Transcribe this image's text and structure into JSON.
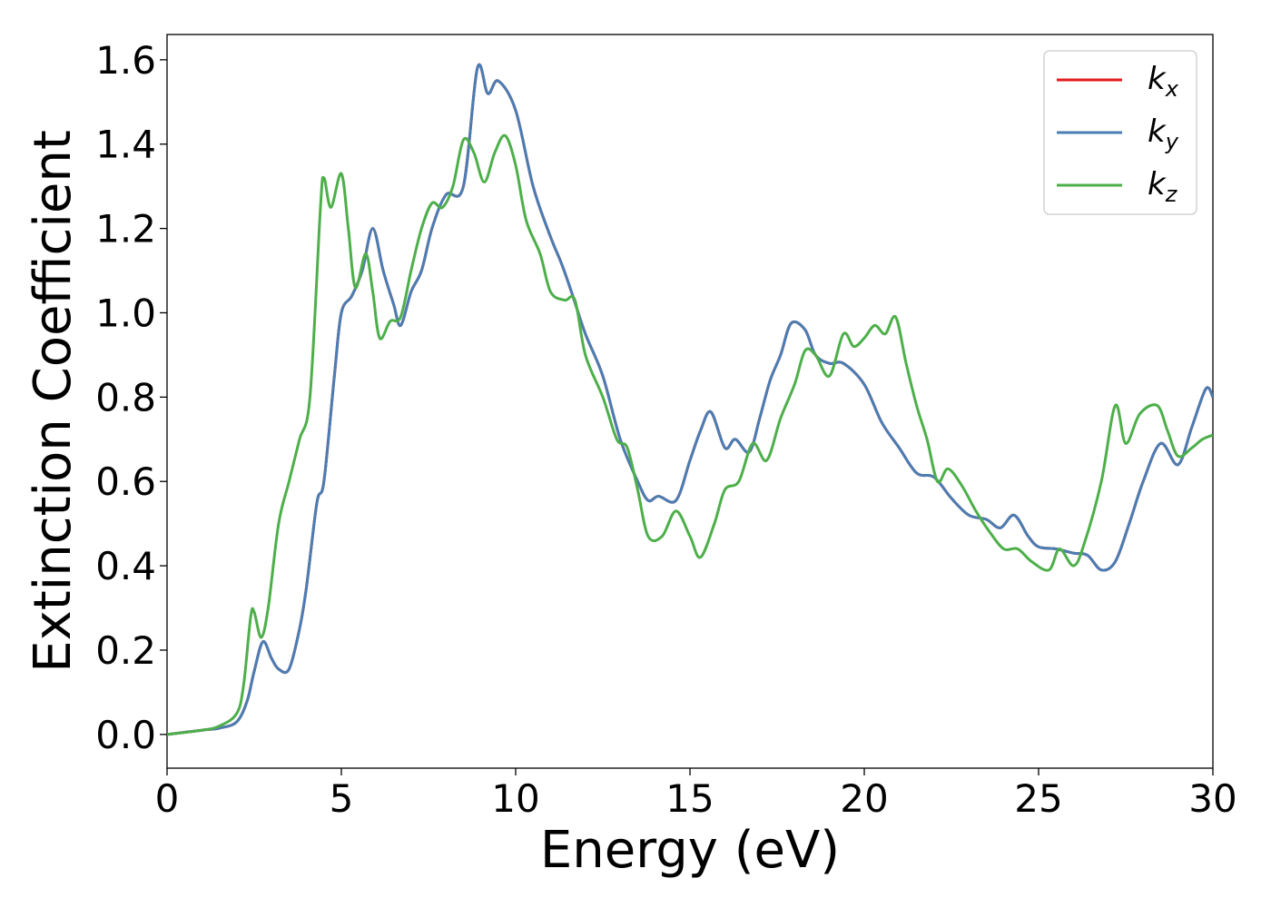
{
  "chart_data": {
    "type": "line",
    "title": "",
    "xlabel": "Energy (eV)",
    "ylabel": "Extinction Coefficient",
    "xlim": [
      0,
      30
    ],
    "ylim": [
      -0.08,
      1.66
    ],
    "xticks": [
      0,
      5,
      10,
      15,
      20,
      25,
      30
    ],
    "xtick_labels": [
      "0",
      "5",
      "10",
      "15",
      "20",
      "25",
      "30"
    ],
    "yticks": [
      0.0,
      0.2,
      0.4,
      0.6,
      0.8,
      1.0,
      1.2,
      1.4,
      1.6
    ],
    "ytick_labels": [
      "0.0",
      "0.2",
      "0.4",
      "0.6",
      "0.8",
      "1.0",
      "1.2",
      "1.4",
      "1.6"
    ],
    "grid": false,
    "legend_position": "top-right",
    "series": [
      {
        "name": "k_x",
        "label_main": "k",
        "label_sub": "x",
        "color": "#e41a1c",
        "points": [
          [
            0,
            0
          ],
          [
            1,
            0.01
          ],
          [
            1.5,
            0.015
          ],
          [
            2.0,
            0.03
          ],
          [
            2.3,
            0.08
          ],
          [
            2.5,
            0.15
          ],
          [
            2.75,
            0.22
          ],
          [
            3.0,
            0.18
          ],
          [
            3.2,
            0.155
          ],
          [
            3.5,
            0.155
          ],
          [
            3.8,
            0.25
          ],
          [
            4.0,
            0.35
          ],
          [
            4.3,
            0.55
          ],
          [
            4.5,
            0.6
          ],
          [
            4.8,
            0.85
          ],
          [
            5.0,
            1.0
          ],
          [
            5.3,
            1.04
          ],
          [
            5.6,
            1.1
          ],
          [
            5.9,
            1.2
          ],
          [
            6.2,
            1.1
          ],
          [
            6.5,
            1.02
          ],
          [
            6.7,
            0.97
          ],
          [
            7.0,
            1.05
          ],
          [
            7.3,
            1.1
          ],
          [
            7.6,
            1.2
          ],
          [
            8.0,
            1.28
          ],
          [
            8.5,
            1.3
          ],
          [
            8.9,
            1.58
          ],
          [
            9.2,
            1.52
          ],
          [
            9.5,
            1.55
          ],
          [
            10.0,
            1.48
          ],
          [
            10.5,
            1.3
          ],
          [
            11.0,
            1.18
          ],
          [
            11.3,
            1.12
          ],
          [
            11.6,
            1.05
          ],
          [
            12.0,
            0.95
          ],
          [
            12.5,
            0.85
          ],
          [
            13.0,
            0.7
          ],
          [
            13.5,
            0.6
          ],
          [
            13.8,
            0.555
          ],
          [
            14.1,
            0.565
          ],
          [
            14.6,
            0.555
          ],
          [
            15.0,
            0.65
          ],
          [
            15.3,
            0.72
          ],
          [
            15.6,
            0.765
          ],
          [
            16.0,
            0.68
          ],
          [
            16.3,
            0.7
          ],
          [
            16.7,
            0.67
          ],
          [
            17.0,
            0.75
          ],
          [
            17.3,
            0.84
          ],
          [
            17.6,
            0.9
          ],
          [
            17.9,
            0.975
          ],
          [
            18.3,
            0.96
          ],
          [
            18.6,
            0.9
          ],
          [
            19.0,
            0.88
          ],
          [
            19.4,
            0.88
          ],
          [
            20.0,
            0.83
          ],
          [
            20.5,
            0.74
          ],
          [
            21.0,
            0.68
          ],
          [
            21.5,
            0.62
          ],
          [
            22.0,
            0.61
          ],
          [
            22.5,
            0.56
          ],
          [
            23.0,
            0.52
          ],
          [
            23.5,
            0.51
          ],
          [
            23.9,
            0.49
          ],
          [
            24.3,
            0.52
          ],
          [
            24.7,
            0.47
          ],
          [
            25.0,
            0.445
          ],
          [
            25.5,
            0.44
          ],
          [
            26.0,
            0.43
          ],
          [
            26.4,
            0.425
          ],
          [
            26.8,
            0.39
          ],
          [
            27.2,
            0.41
          ],
          [
            27.6,
            0.5
          ],
          [
            28.0,
            0.6
          ],
          [
            28.5,
            0.69
          ],
          [
            29.0,
            0.64
          ],
          [
            29.4,
            0.73
          ],
          [
            29.8,
            0.82
          ],
          [
            30.0,
            0.8
          ]
        ]
      },
      {
        "name": "k_y",
        "label_main": "k",
        "label_sub": "y",
        "color": "#4a7db3",
        "points": [
          [
            0,
            0
          ],
          [
            1,
            0.01
          ],
          [
            1.5,
            0.015
          ],
          [
            2.0,
            0.03
          ],
          [
            2.3,
            0.08
          ],
          [
            2.5,
            0.15
          ],
          [
            2.75,
            0.22
          ],
          [
            3.0,
            0.18
          ],
          [
            3.2,
            0.155
          ],
          [
            3.5,
            0.155
          ],
          [
            3.8,
            0.25
          ],
          [
            4.0,
            0.35
          ],
          [
            4.3,
            0.55
          ],
          [
            4.5,
            0.6
          ],
          [
            4.8,
            0.85
          ],
          [
            5.0,
            1.0
          ],
          [
            5.3,
            1.04
          ],
          [
            5.6,
            1.1
          ],
          [
            5.9,
            1.2
          ],
          [
            6.2,
            1.1
          ],
          [
            6.5,
            1.02
          ],
          [
            6.7,
            0.97
          ],
          [
            7.0,
            1.05
          ],
          [
            7.3,
            1.1
          ],
          [
            7.6,
            1.2
          ],
          [
            8.0,
            1.28
          ],
          [
            8.5,
            1.3
          ],
          [
            8.9,
            1.58
          ],
          [
            9.2,
            1.52
          ],
          [
            9.5,
            1.55
          ],
          [
            10.0,
            1.48
          ],
          [
            10.5,
            1.3
          ],
          [
            11.0,
            1.18
          ],
          [
            11.3,
            1.12
          ],
          [
            11.6,
            1.05
          ],
          [
            12.0,
            0.95
          ],
          [
            12.5,
            0.85
          ],
          [
            13.0,
            0.7
          ],
          [
            13.5,
            0.6
          ],
          [
            13.8,
            0.555
          ],
          [
            14.1,
            0.565
          ],
          [
            14.6,
            0.555
          ],
          [
            15.0,
            0.65
          ],
          [
            15.3,
            0.72
          ],
          [
            15.6,
            0.765
          ],
          [
            16.0,
            0.68
          ],
          [
            16.3,
            0.7
          ],
          [
            16.7,
            0.67
          ],
          [
            17.0,
            0.75
          ],
          [
            17.3,
            0.84
          ],
          [
            17.6,
            0.9
          ],
          [
            17.9,
            0.975
          ],
          [
            18.3,
            0.96
          ],
          [
            18.6,
            0.9
          ],
          [
            19.0,
            0.88
          ],
          [
            19.4,
            0.88
          ],
          [
            20.0,
            0.83
          ],
          [
            20.5,
            0.74
          ],
          [
            21.0,
            0.68
          ],
          [
            21.5,
            0.62
          ],
          [
            22.0,
            0.61
          ],
          [
            22.5,
            0.56
          ],
          [
            23.0,
            0.52
          ],
          [
            23.5,
            0.51
          ],
          [
            23.9,
            0.49
          ],
          [
            24.3,
            0.52
          ],
          [
            24.7,
            0.47
          ],
          [
            25.0,
            0.445
          ],
          [
            25.5,
            0.44
          ],
          [
            26.0,
            0.43
          ],
          [
            26.4,
            0.425
          ],
          [
            26.8,
            0.39
          ],
          [
            27.2,
            0.41
          ],
          [
            27.6,
            0.5
          ],
          [
            28.0,
            0.6
          ],
          [
            28.5,
            0.69
          ],
          [
            29.0,
            0.64
          ],
          [
            29.4,
            0.73
          ],
          [
            29.8,
            0.82
          ],
          [
            30.0,
            0.8
          ]
        ]
      },
      {
        "name": "k_z",
        "label_main": "k",
        "label_sub": "z",
        "color": "#4daf4a",
        "points": [
          [
            0,
            0
          ],
          [
            1,
            0.01
          ],
          [
            1.5,
            0.02
          ],
          [
            2.0,
            0.05
          ],
          [
            2.2,
            0.12
          ],
          [
            2.4,
            0.28
          ],
          [
            2.5,
            0.29
          ],
          [
            2.7,
            0.23
          ],
          [
            2.9,
            0.3
          ],
          [
            3.2,
            0.5
          ],
          [
            3.5,
            0.6
          ],
          [
            3.8,
            0.7
          ],
          [
            4.1,
            0.8
          ],
          [
            4.4,
            1.25
          ],
          [
            4.5,
            1.32
          ],
          [
            4.7,
            1.25
          ],
          [
            5.0,
            1.33
          ],
          [
            5.2,
            1.2
          ],
          [
            5.4,
            1.06
          ],
          [
            5.7,
            1.14
          ],
          [
            5.9,
            1.05
          ],
          [
            6.1,
            0.94
          ],
          [
            6.4,
            0.98
          ],
          [
            6.7,
            0.99
          ],
          [
            7.0,
            1.1
          ],
          [
            7.3,
            1.2
          ],
          [
            7.6,
            1.26
          ],
          [
            7.9,
            1.25
          ],
          [
            8.2,
            1.3
          ],
          [
            8.5,
            1.41
          ],
          [
            8.8,
            1.38
          ],
          [
            9.1,
            1.31
          ],
          [
            9.4,
            1.38
          ],
          [
            9.7,
            1.42
          ],
          [
            10.0,
            1.35
          ],
          [
            10.3,
            1.22
          ],
          [
            10.7,
            1.14
          ],
          [
            11.0,
            1.05
          ],
          [
            11.4,
            1.03
          ],
          [
            11.7,
            1.03
          ],
          [
            12.0,
            0.9
          ],
          [
            12.5,
            0.8
          ],
          [
            12.9,
            0.7
          ],
          [
            13.2,
            0.68
          ],
          [
            13.5,
            0.58
          ],
          [
            13.8,
            0.47
          ],
          [
            14.2,
            0.47
          ],
          [
            14.6,
            0.53
          ],
          [
            15.0,
            0.47
          ],
          [
            15.3,
            0.42
          ],
          [
            15.7,
            0.5
          ],
          [
            16.0,
            0.58
          ],
          [
            16.4,
            0.6
          ],
          [
            16.8,
            0.69
          ],
          [
            17.2,
            0.65
          ],
          [
            17.6,
            0.75
          ],
          [
            18.0,
            0.83
          ],
          [
            18.3,
            0.91
          ],
          [
            18.6,
            0.9
          ],
          [
            19.0,
            0.85
          ],
          [
            19.4,
            0.95
          ],
          [
            19.7,
            0.92
          ],
          [
            20.0,
            0.94
          ],
          [
            20.3,
            0.97
          ],
          [
            20.6,
            0.95
          ],
          [
            20.9,
            0.99
          ],
          [
            21.2,
            0.88
          ],
          [
            21.5,
            0.78
          ],
          [
            21.8,
            0.7
          ],
          [
            22.1,
            0.6
          ],
          [
            22.4,
            0.63
          ],
          [
            22.8,
            0.59
          ],
          [
            23.2,
            0.53
          ],
          [
            23.6,
            0.48
          ],
          [
            24.0,
            0.44
          ],
          [
            24.4,
            0.44
          ],
          [
            24.8,
            0.41
          ],
          [
            25.3,
            0.39
          ],
          [
            25.6,
            0.44
          ],
          [
            26.0,
            0.4
          ],
          [
            26.3,
            0.45
          ],
          [
            26.8,
            0.6
          ],
          [
            27.2,
            0.78
          ],
          [
            27.5,
            0.69
          ],
          [
            27.9,
            0.76
          ],
          [
            28.4,
            0.78
          ],
          [
            28.7,
            0.72
          ],
          [
            29.0,
            0.66
          ],
          [
            29.4,
            0.68
          ],
          [
            29.7,
            0.7
          ],
          [
            30.0,
            0.71
          ]
        ]
      }
    ]
  }
}
